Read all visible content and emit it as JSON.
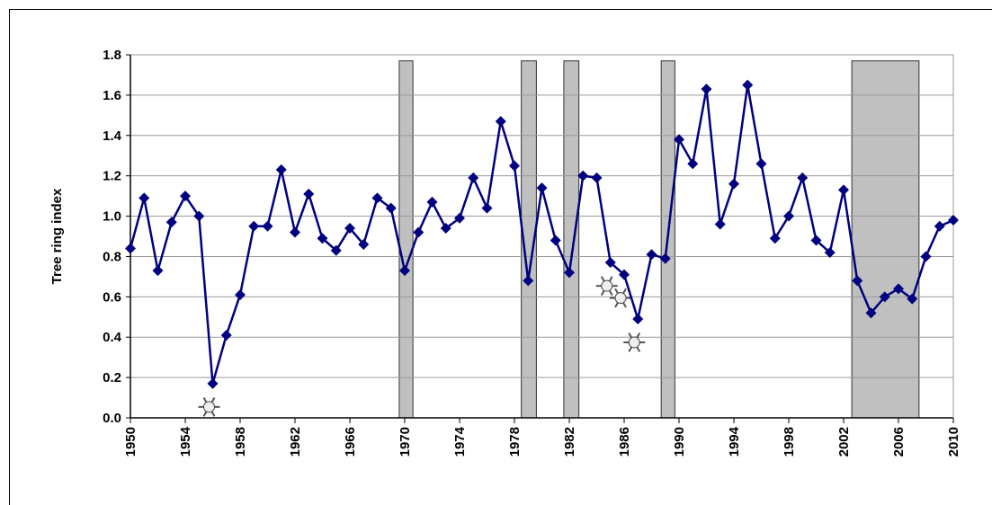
{
  "chart_data": {
    "type": "line",
    "y_label": "Tree ring index",
    "x": [
      1950,
      1951,
      1952,
      1953,
      1954,
      1955,
      1956,
      1957,
      1958,
      1959,
      1960,
      1961,
      1962,
      1963,
      1964,
      1965,
      1966,
      1967,
      1968,
      1969,
      1970,
      1971,
      1972,
      1973,
      1974,
      1975,
      1976,
      1977,
      1978,
      1979,
      1980,
      1981,
      1982,
      1983,
      1984,
      1985,
      1986,
      1987,
      1988,
      1989,
      1990,
      1991,
      1992,
      1993,
      1994,
      1995,
      1996,
      1997,
      1998,
      1999,
      2000,
      2001,
      2002,
      2003,
      2004,
      2005,
      2006,
      2007,
      2008,
      2009,
      2010
    ],
    "series": [
      {
        "color": "#000080",
        "values": [
          0.84,
          1.09,
          0.73,
          0.97,
          1.1,
          1.0,
          0.17,
          0.41,
          0.61,
          0.95,
          0.95,
          1.23,
          0.92,
          1.11,
          0.89,
          0.83,
          0.94,
          0.86,
          1.09,
          1.04,
          0.73,
          0.92,
          1.07,
          0.94,
          0.99,
          1.19,
          1.04,
          1.47,
          1.25,
          0.68,
          1.14,
          0.88,
          0.72,
          1.2,
          1.19,
          0.77,
          0.71,
          0.49,
          0.81,
          0.79,
          1.38,
          1.26,
          1.63,
          0.96,
          1.16,
          1.65,
          1.26,
          0.89,
          1.0,
          1.19,
          0.88,
          0.82,
          1.13,
          0.68,
          0.52,
          0.6,
          0.64,
          0.59,
          0.8,
          0.95,
          0.98
        ]
      }
    ],
    "shaded_periods": [
      [
        1969.6,
        1970.6
      ],
      [
        1978.5,
        1979.6
      ],
      [
        1981.6,
        1982.7
      ],
      [
        1988.7,
        1989.7
      ],
      [
        2002.6,
        2007.5
      ]
    ],
    "shade_top": 1.77,
    "frost_years": [
      1956,
      1985,
      1986,
      1987
    ],
    "xlim": [
      1950,
      2010
    ],
    "xticks": [
      1950,
      1954,
      1958,
      1962,
      1966,
      1970,
      1974,
      1978,
      1982,
      1986,
      1990,
      1994,
      1998,
      2002,
      2006,
      2010
    ],
    "ylim": [
      0,
      1.8
    ],
    "yticks": [
      {
        "value": 0,
        "label": "0.0"
      },
      {
        "value": 0.2,
        "label": "0.2"
      },
      {
        "value": 0.4,
        "label": "0.4"
      },
      {
        "value": 0.6,
        "label": "0.6"
      },
      {
        "value": 0.8,
        "label": "0.8"
      },
      {
        "value": 1,
        "label": "1.0"
      },
      {
        "value": 1.2,
        "label": "1.2"
      },
      {
        "value": 1.4,
        "label": "1.4"
      },
      {
        "value": 1.6,
        "label": "1.6"
      },
      {
        "value": 1.8,
        "label": "1.8"
      }
    ],
    "grid": true
  }
}
